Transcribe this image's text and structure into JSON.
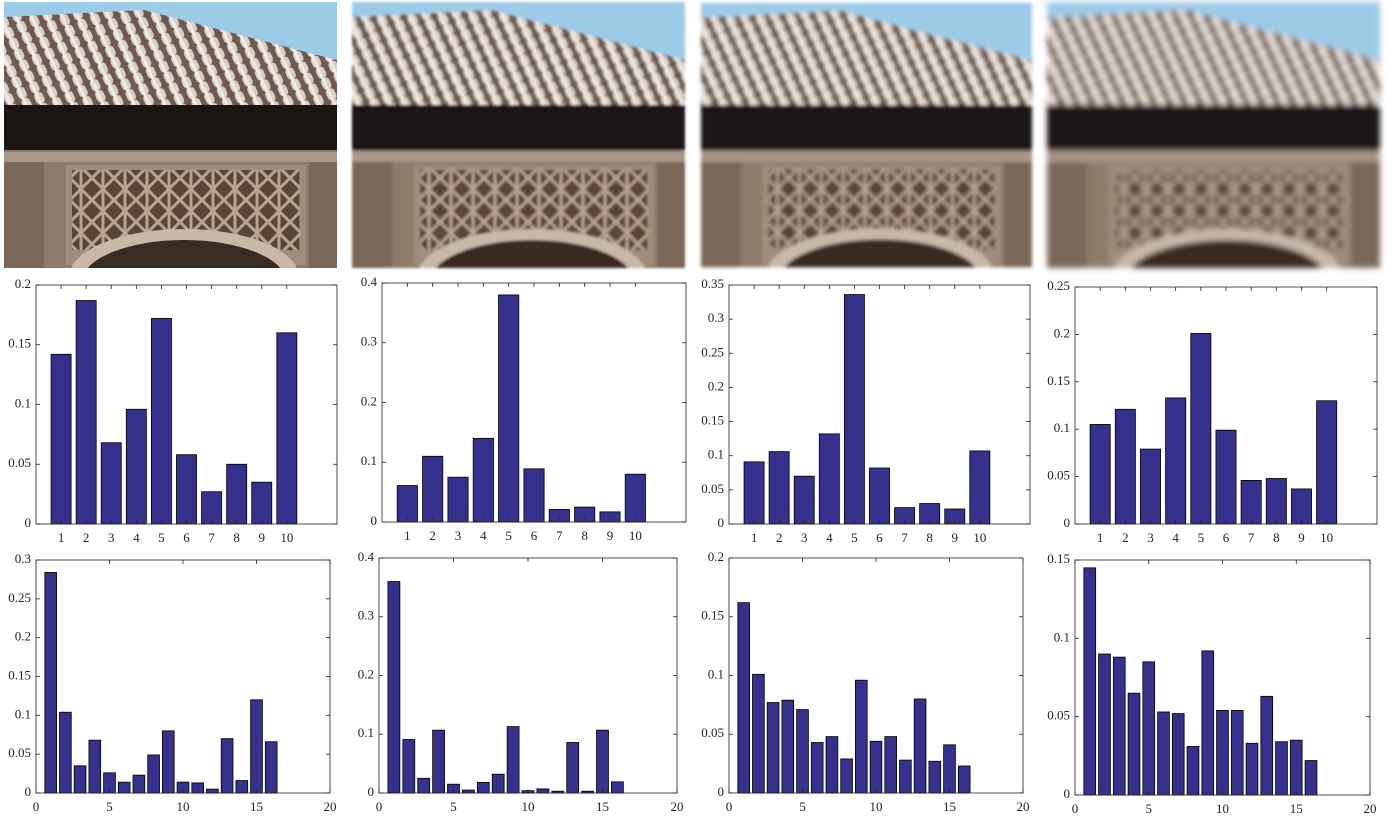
{
  "chart_data": [
    {
      "type": "bar",
      "x": [
        1,
        2,
        3,
        4,
        5,
        6,
        7,
        8,
        9,
        10
      ],
      "values": [
        0.142,
        0.187,
        0.068,
        0.096,
        0.172,
        0.058,
        0.027,
        0.05,
        0.035,
        0.16
      ],
      "color": "#36318c",
      "xlim": [
        0,
        12
      ],
      "xticks": [
        1,
        2,
        3,
        4,
        5,
        6,
        7,
        8,
        9,
        10
      ],
      "ylim": [
        0,
        0.2
      ],
      "yticks": [
        0,
        0.05,
        0.1,
        0.15,
        0.2
      ]
    },
    {
      "type": "bar",
      "x": [
        1,
        2,
        3,
        4,
        5,
        6,
        7,
        8,
        9,
        10
      ],
      "values": [
        0.061,
        0.11,
        0.075,
        0.14,
        0.38,
        0.089,
        0.021,
        0.025,
        0.017,
        0.08
      ],
      "color": "#36318c",
      "xlim": [
        0,
        12
      ],
      "xticks": [
        1,
        2,
        3,
        4,
        5,
        6,
        7,
        8,
        9,
        10
      ],
      "ylim": [
        0,
        0.4
      ],
      "yticks": [
        0,
        0.1,
        0.2,
        0.3,
        0.4
      ]
    },
    {
      "type": "bar",
      "x": [
        1,
        2,
        3,
        4,
        5,
        6,
        7,
        8,
        9,
        10
      ],
      "values": [
        0.091,
        0.106,
        0.07,
        0.132,
        0.336,
        0.082,
        0.024,
        0.03,
        0.022,
        0.107
      ],
      "color": "#36318c",
      "xlim": [
        0,
        12
      ],
      "xticks": [
        1,
        2,
        3,
        4,
        5,
        6,
        7,
        8,
        9,
        10
      ],
      "ylim": [
        0,
        0.35
      ],
      "yticks": [
        0,
        0.05,
        0.1,
        0.15,
        0.2,
        0.25,
        0.3,
        0.35
      ]
    },
    {
      "type": "bar",
      "x": [
        1,
        2,
        3,
        4,
        5,
        6,
        7,
        8,
        9,
        10
      ],
      "values": [
        0.105,
        0.121,
        0.079,
        0.133,
        0.201,
        0.099,
        0.046,
        0.048,
        0.037,
        0.13
      ],
      "color": "#36318c",
      "xlim": [
        0,
        12
      ],
      "xticks": [
        1,
        2,
        3,
        4,
        5,
        6,
        7,
        8,
        9,
        10
      ],
      "ylim": [
        0,
        0.25
      ],
      "yticks": [
        0,
        0.05,
        0.1,
        0.15,
        0.2,
        0.25
      ]
    },
    {
      "type": "bar",
      "x": [
        1,
        2,
        3,
        4,
        5,
        6,
        7,
        8,
        9,
        10,
        11,
        12,
        13,
        14,
        15,
        16
      ],
      "values": [
        0.284,
        0.104,
        0.035,
        0.068,
        0.026,
        0.014,
        0.023,
        0.049,
        0.08,
        0.014,
        0.013,
        0.005,
        0.07,
        0.016,
        0.12,
        0.066
      ],
      "color": "#36318c",
      "xlim": [
        0,
        20
      ],
      "xticks": [
        0,
        5,
        10,
        15,
        20
      ],
      "ylim": [
        0,
        0.3
      ],
      "yticks": [
        0,
        0.05,
        0.1,
        0.15,
        0.2,
        0.25,
        0.3
      ]
    },
    {
      "type": "bar",
      "x": [
        1,
        2,
        3,
        4,
        5,
        6,
        7,
        8,
        9,
        10,
        11,
        12,
        13,
        14,
        15,
        16
      ],
      "values": [
        0.36,
        0.091,
        0.025,
        0.107,
        0.015,
        0.005,
        0.018,
        0.032,
        0.113,
        0.004,
        0.007,
        0.003,
        0.086,
        0.003,
        0.107,
        0.019
      ],
      "color": "#36318c",
      "xlim": [
        0,
        20
      ],
      "xticks": [
        0,
        5,
        10,
        15,
        20
      ],
      "ylim": [
        0,
        0.4
      ],
      "yticks": [
        0,
        0.1,
        0.2,
        0.3,
        0.4
      ]
    },
    {
      "type": "bar",
      "x": [
        1,
        2,
        3,
        4,
        5,
        6,
        7,
        8,
        9,
        10,
        11,
        12,
        13,
        14,
        15,
        16
      ],
      "values": [
        0.162,
        0.101,
        0.077,
        0.079,
        0.071,
        0.043,
        0.048,
        0.029,
        0.096,
        0.044,
        0.048,
        0.028,
        0.08,
        0.027,
        0.041,
        0.023
      ],
      "color": "#36318c",
      "xlim": [
        0,
        20
      ],
      "xticks": [
        0,
        5,
        10,
        15,
        20
      ],
      "ylim": [
        0,
        0.2
      ],
      "yticks": [
        0,
        0.05,
        0.1,
        0.15,
        0.2
      ]
    },
    {
      "type": "bar",
      "x": [
        1,
        2,
        3,
        4,
        5,
        6,
        7,
        8,
        9,
        10,
        11,
        12,
        13,
        14,
        15,
        16
      ],
      "values": [
        0.145,
        0.09,
        0.088,
        0.065,
        0.085,
        0.053,
        0.052,
        0.031,
        0.092,
        0.054,
        0.054,
        0.033,
        0.063,
        0.034,
        0.035,
        0.022
      ],
      "color": "#36318c",
      "xlim": [
        0,
        20
      ],
      "xticks": [
        0,
        5,
        10,
        15,
        20
      ],
      "ylim": [
        0,
        0.15
      ],
      "yticks": [
        0,
        0.05,
        0.1,
        0.15
      ]
    }
  ]
}
